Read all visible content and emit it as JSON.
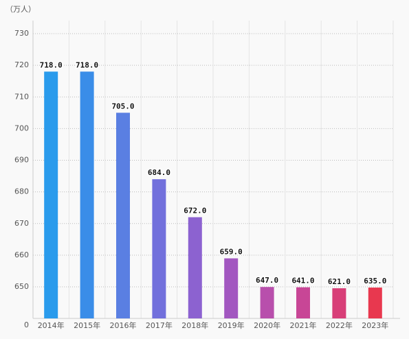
{
  "chart_data": {
    "type": "bar",
    "y_unit": "（万人）",
    "categories": [
      "2014年",
      "2015年",
      "2016年",
      "2017年",
      "2018年",
      "2019年",
      "2020年",
      "2021年",
      "2022年",
      "2023年"
    ],
    "values": [
      718,
      718,
      705,
      684,
      672,
      659,
      647,
      641,
      621,
      635
    ],
    "value_labels": [
      "718.0",
      "718.0",
      "705.0",
      "684.0",
      "672.0",
      "659.0",
      "647.0",
      "641.0",
      "621.0",
      "635.0"
    ],
    "colors": [
      "#2a9bec",
      "#3a8de8",
      "#5a7fe2",
      "#7270dc",
      "#8c62d0",
      "#a257c0",
      "#b84fac",
      "#c84696",
      "#d83f78",
      "#e8384f"
    ],
    "ylim": [
      0,
      730
    ],
    "yticks": [
      0,
      650,
      660,
      670,
      680,
      690,
      700,
      710,
      720,
      730
    ],
    "axis_break": 650,
    "grid": true
  }
}
